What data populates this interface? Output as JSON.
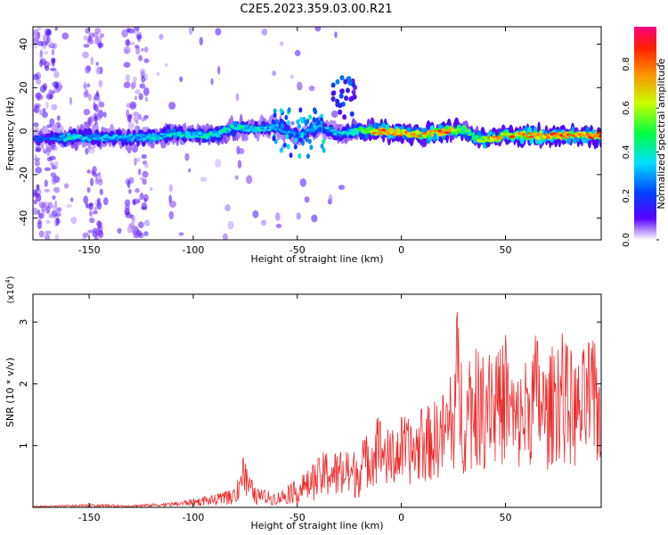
{
  "title": "C2E5.2023.359.03.00.R21",
  "chart_data": [
    {
      "type": "heatmap",
      "xlabel": "Height of straight line (km)",
      "ylabel": "Frequency (Hz)",
      "xlim": [
        -177,
        96
      ],
      "ylim": [
        -50,
        48
      ],
      "xticks": [
        -150,
        -100,
        -50,
        0,
        50
      ],
      "yticks": [
        -40,
        -20,
        0,
        20,
        40
      ],
      "colorbar": {
        "label": "Normalized spectral amplitude",
        "range": [
          0.0,
          0.97
        ],
        "ticks": [
          0.0,
          0.2,
          0.4,
          0.6,
          0.8
        ],
        "colors": [
          "#ffffff",
          "#5a00ff",
          "#0040ff",
          "#00e0ff",
          "#00ff40",
          "#c8ff00",
          "#ff9000",
          "#ff2000",
          "#ff0080"
        ]
      },
      "ridge": [
        {
          "x": -170,
          "y": -3,
          "a": 0.25
        },
        {
          "x": -160,
          "y": -3,
          "a": 0.45
        },
        {
          "x": -150,
          "y": -3,
          "a": 0.35
        },
        {
          "x": -140,
          "y": -3,
          "a": 0.35
        },
        {
          "x": -130,
          "y": -3,
          "a": 0.35
        },
        {
          "x": -120,
          "y": -3,
          "a": 0.4
        },
        {
          "x": -110,
          "y": -1,
          "a": 0.4
        },
        {
          "x": -100,
          "y": -2,
          "a": 0.45
        },
        {
          "x": -90,
          "y": -2,
          "a": 0.45
        },
        {
          "x": -80,
          "y": 2,
          "a": 0.45
        },
        {
          "x": -70,
          "y": 1,
          "a": 0.4
        },
        {
          "x": -60,
          "y": 2,
          "a": 0.35
        },
        {
          "x": -50,
          "y": -2,
          "a": 0.35
        },
        {
          "x": -40,
          "y": 2,
          "a": 0.35
        },
        {
          "x": -30,
          "y": -1,
          "a": 0.4
        },
        {
          "x": -20,
          "y": 0,
          "a": 0.5
        },
        {
          "x": -10,
          "y": 0,
          "a": 0.85
        },
        {
          "x": 0,
          "y": -1,
          "a": 0.8
        },
        {
          "x": 10,
          "y": -2,
          "a": 0.7
        },
        {
          "x": 20,
          "y": 0,
          "a": 0.85
        },
        {
          "x": 30,
          "y": 1,
          "a": 0.6
        },
        {
          "x": 35,
          "y": -3,
          "a": 0.5
        },
        {
          "x": 40,
          "y": -4,
          "a": 0.7
        },
        {
          "x": 50,
          "y": -2,
          "a": 0.75
        },
        {
          "x": 60,
          "y": -2,
          "a": 0.8
        },
        {
          "x": 70,
          "y": -2,
          "a": 0.8
        },
        {
          "x": 80,
          "y": -2,
          "a": 0.85
        },
        {
          "x": 90,
          "y": -2,
          "a": 0.8
        }
      ]
    },
    {
      "type": "line",
      "xlabel": "Height of straight line (km)",
      "ylabel": "SNR (10 * v/v)",
      "scale_label": "(x10",
      "scale_exponent": "4",
      "scale_label_close": ")",
      "xlim": [
        -177,
        96
      ],
      "ylim": [
        0,
        3.45
      ],
      "xticks": [
        -150,
        -100,
        -50,
        0,
        50
      ],
      "yticks": [
        1,
        2,
        3
      ],
      "series": [
        {
          "color": "#ee2b2b",
          "x": [
            -177,
            -150,
            -130,
            -110,
            -100,
            -90,
            -80,
            -77,
            -70,
            -60,
            -50,
            -45,
            -40,
            -35,
            -30,
            -25,
            -20,
            -15,
            -10,
            -5,
            0,
            5,
            10,
            15,
            20,
            25,
            27,
            30,
            35,
            40,
            42,
            45,
            50,
            55,
            60,
            65,
            70,
            75,
            80,
            85,
            90,
            96
          ],
          "y": [
            0.02,
            0.05,
            0.04,
            0.08,
            0.15,
            0.2,
            0.3,
            0.9,
            0.3,
            0.25,
            0.45,
            0.6,
            0.8,
            1.0,
            0.9,
            0.9,
            1.0,
            1.3,
            1.5,
            1.2,
            1.5,
            1.4,
            1.6,
            1.7,
            1.9,
            2.2,
            3.4,
            2.1,
            2.6,
            2.4,
            3.35,
            2.4,
            2.8,
            2.1,
            2.5,
            2.9,
            2.3,
            3.0,
            2.6,
            2.4,
            2.8,
            2.5
          ]
        }
      ]
    }
  ]
}
